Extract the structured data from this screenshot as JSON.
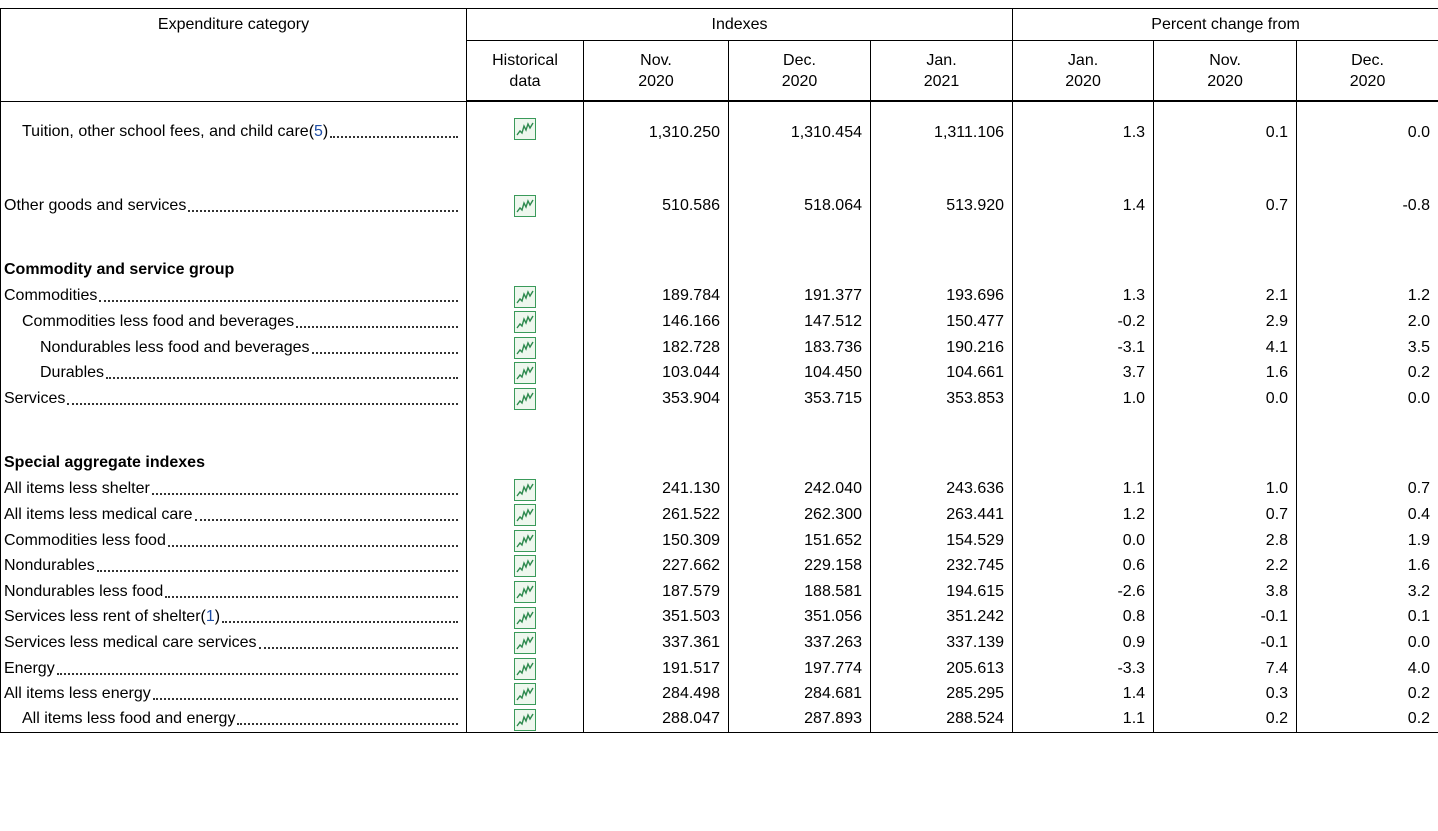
{
  "table": {
    "header": {
      "category": "Expenditure category",
      "indexes": "Indexes",
      "percent_change": "Percent change from",
      "columns": [
        "Historical data",
        "Nov. 2020",
        "Dec. 2020",
        "Jan. 2021",
        "Jan. 2020",
        "Nov. 2020",
        "Dec. 2020"
      ]
    },
    "groups": [
      {
        "rows": [
          {
            "label": "Tuition, other school fees, and child care",
            "level": 1,
            "footnote": {
              "open": "(",
              "ref": "5",
              "close": ")"
            },
            "values": [
              "1,310.250",
              "1,310.454",
              "1,311.106",
              "1.3",
              "0.1",
              "0.0"
            ]
          }
        ]
      },
      {
        "rows": [
          {
            "label": "Other goods and services",
            "level": 0,
            "values": [
              "510.586",
              "518.064",
              "513.920",
              "1.4",
              "0.7",
              "-0.8"
            ]
          }
        ]
      },
      {
        "heading": "Commodity and service group",
        "rows": [
          {
            "label": "Commodities",
            "level": 0,
            "values": [
              "189.784",
              "191.377",
              "193.696",
              "1.3",
              "2.1",
              "1.2"
            ]
          },
          {
            "label": "Commodities less food and beverages",
            "level": 1,
            "values": [
              "146.166",
              "147.512",
              "150.477",
              "-0.2",
              "2.9",
              "2.0"
            ]
          },
          {
            "label": "Nondurables less food and beverages",
            "level": 2,
            "values": [
              "182.728",
              "183.736",
              "190.216",
              "-3.1",
              "4.1",
              "3.5"
            ]
          },
          {
            "label": "Durables",
            "level": 2,
            "values": [
              "103.044",
              "104.450",
              "104.661",
              "3.7",
              "1.6",
              "0.2"
            ]
          },
          {
            "label": "Services",
            "level": 0,
            "values": [
              "353.904",
              "353.715",
              "353.853",
              "1.0",
              "0.0",
              "0.0"
            ]
          }
        ]
      },
      {
        "heading": "Special aggregate indexes",
        "rows": [
          {
            "label": "All items less shelter",
            "level": 0,
            "values": [
              "241.130",
              "242.040",
              "243.636",
              "1.1",
              "1.0",
              "0.7"
            ]
          },
          {
            "label": "All items less medical care",
            "level": 0,
            "values": [
              "261.522",
              "262.300",
              "263.441",
              "1.2",
              "0.7",
              "0.4"
            ]
          },
          {
            "label": "Commodities less food",
            "level": 0,
            "values": [
              "150.309",
              "151.652",
              "154.529",
              "0.0",
              "2.8",
              "1.9"
            ]
          },
          {
            "label": "Nondurables",
            "level": 0,
            "values": [
              "227.662",
              "229.158",
              "232.745",
              "0.6",
              "2.2",
              "1.6"
            ]
          },
          {
            "label": "Nondurables less food",
            "level": 0,
            "values": [
              "187.579",
              "188.581",
              "194.615",
              "-2.6",
              "3.8",
              "3.2"
            ]
          },
          {
            "label": "Services less rent of shelter",
            "level": 0,
            "footnote": {
              "open": "(",
              "ref": "1",
              "close": ")"
            },
            "values": [
              "351.503",
              "351.056",
              "351.242",
              "0.8",
              "-0.1",
              "0.1"
            ]
          },
          {
            "label": "Services less medical care services",
            "level": 0,
            "values": [
              "337.361",
              "337.263",
              "337.139",
              "0.9",
              "-0.1",
              "0.0"
            ]
          },
          {
            "label": "Energy",
            "level": 0,
            "values": [
              "191.517",
              "197.774",
              "205.613",
              "-3.3",
              "7.4",
              "4.0"
            ]
          },
          {
            "label": "All items less energy",
            "level": 0,
            "values": [
              "284.498",
              "284.681",
              "285.295",
              "1.4",
              "0.3",
              "0.2"
            ]
          },
          {
            "label": "All items less food and energy",
            "level": 1,
            "values": [
              "288.047",
              "287.893",
              "288.524",
              "1.1",
              "0.2",
              "0.2"
            ]
          }
        ]
      }
    ]
  }
}
